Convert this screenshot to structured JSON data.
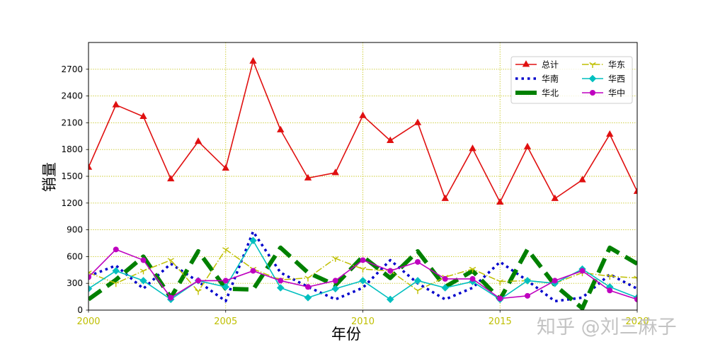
{
  "chart_data": {
    "type": "line",
    "xlabel": "年份",
    "ylabel": "销量",
    "x": [
      2000,
      2001,
      2002,
      2003,
      2004,
      2005,
      2006,
      2007,
      2008,
      2009,
      2010,
      2011,
      2012,
      2013,
      2014,
      2015,
      2016,
      2017,
      2018,
      2019,
      2020
    ],
    "xlim": [
      2000,
      2020
    ],
    "ylim": [
      0,
      3000
    ],
    "x_ticks": [
      2000,
      2005,
      2010,
      2015,
      2020
    ],
    "y_ticks": [
      0,
      300,
      600,
      900,
      1200,
      1500,
      1800,
      2100,
      2400,
      2700
    ],
    "x_tick_color": "#bfbf00",
    "grid": true,
    "grid_color": "#bfbf00",
    "legend_position": "top-right",
    "series": [
      {
        "name": "总计",
        "color": "#e01010",
        "values": [
          1600,
          2300,
          2170,
          1470,
          1890,
          1590,
          2790,
          2020,
          1480,
          1540,
          2180,
          1900,
          2100,
          1250,
          1810,
          1210,
          1830,
          1250,
          1460,
          1970,
          1330
        ]
      },
      {
        "name": "华南",
        "color": "#0000cc",
        "values": [
          380,
          500,
          240,
          520,
          320,
          100,
          880,
          420,
          260,
          120,
          250,
          560,
          300,
          120,
          250,
          540,
          330,
          100,
          140,
          400,
          240
        ]
      },
      {
        "name": "华北",
        "color": "#008000",
        "values": [
          120,
          340,
          600,
          140,
          660,
          240,
          230,
          700,
          420,
          280,
          600,
          360,
          660,
          260,
          440,
          120,
          680,
          280,
          20,
          700,
          520
        ]
      },
      {
        "name": "华东",
        "color": "#bfbf00",
        "values": [
          420,
          300,
          440,
          560,
          210,
          680,
          460,
          340,
          360,
          580,
          460,
          440,
          220,
          370,
          460,
          320,
          330,
          300,
          420,
          380,
          360
        ]
      },
      {
        "name": "华西",
        "color": "#00bfbf",
        "values": [
          240,
          440,
          330,
          120,
          330,
          260,
          780,
          250,
          140,
          240,
          330,
          120,
          330,
          250,
          320,
          120,
          330,
          300,
          460,
          260,
          140
        ]
      },
      {
        "name": "华中",
        "color": "#bf00bf",
        "values": [
          370,
          680,
          560,
          140,
          330,
          330,
          440,
          330,
          260,
          330,
          560,
          440,
          540,
          350,
          350,
          130,
          160,
          330,
          440,
          220,
          120
        ]
      }
    ]
  },
  "watermark": "知乎 @刘三麻子"
}
